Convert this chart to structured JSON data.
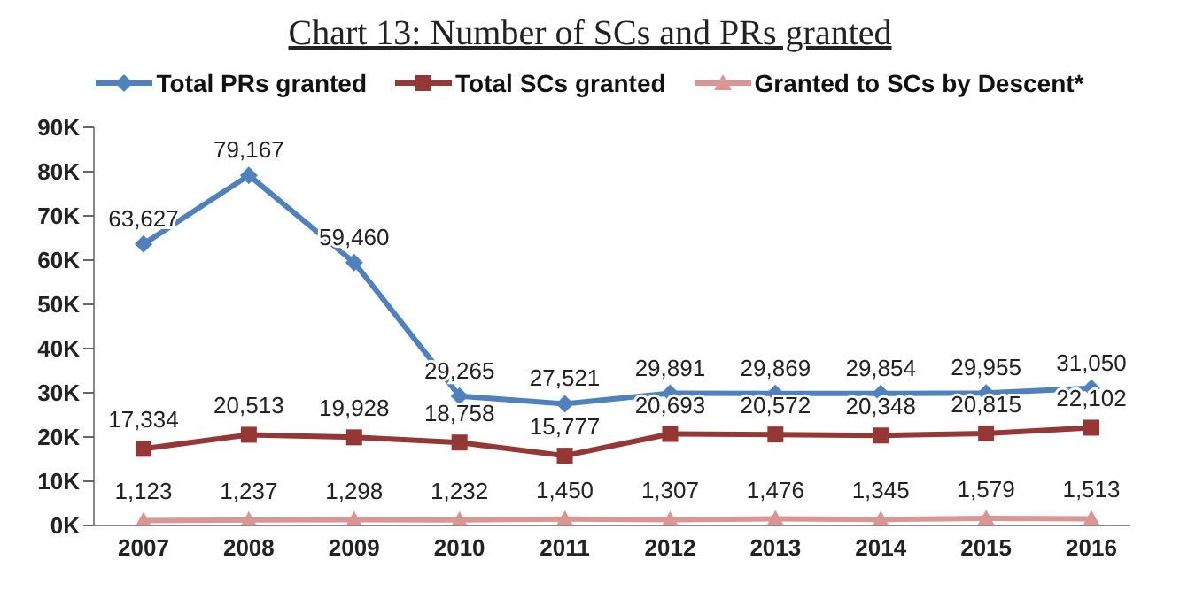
{
  "chart_data": {
    "type": "line",
    "title": "Chart 13: Number of SCs and PRs granted",
    "categories": [
      "2007",
      "2008",
      "2009",
      "2010",
      "2011",
      "2012",
      "2013",
      "2014",
      "2015",
      "2016"
    ],
    "series": [
      {
        "name": "Total PRs granted",
        "color": "#4f81bd",
        "marker": "diamond",
        "values": [
          63627,
          79167,
          59460,
          29265,
          27521,
          29891,
          29869,
          29854,
          29955,
          31050
        ],
        "value_labels": [
          "63,627",
          "79,167",
          "59,460",
          "29,265",
          "27,521",
          "29,891",
          "29,869",
          "29,854",
          "29,955",
          "31,050"
        ]
      },
      {
        "name": "Total SCs granted",
        "color": "#953735",
        "marker": "square",
        "values": [
          17334,
          20513,
          19928,
          18758,
          15777,
          20693,
          20572,
          20348,
          20815,
          22102
        ],
        "value_labels": [
          "17,334",
          "20,513",
          "19,928",
          "18,758",
          "15,777",
          "20,693",
          "20,572",
          "20,348",
          "20,815",
          "22,102"
        ]
      },
      {
        "name": "Granted to SCs by Descent*",
        "color": "#d99694",
        "marker": "triangle",
        "values": [
          1123,
          1237,
          1298,
          1232,
          1450,
          1307,
          1476,
          1345,
          1579,
          1513
        ],
        "value_labels": [
          "1,123",
          "1,237",
          "1,298",
          "1,232",
          "1,450",
          "1,307",
          "1,476",
          "1,345",
          "1,579",
          "1,513"
        ]
      }
    ],
    "ylim": [
      0,
      90000
    ],
    "yticks": [
      {
        "value": 0,
        "label": "0K"
      },
      {
        "value": 10000,
        "label": "10K"
      },
      {
        "value": 20000,
        "label": "20K"
      },
      {
        "value": 30000,
        "label": "30K"
      },
      {
        "value": 40000,
        "label": "40K"
      },
      {
        "value": 50000,
        "label": "50K"
      },
      {
        "value": 60000,
        "label": "60K"
      },
      {
        "value": 70000,
        "label": "70K"
      },
      {
        "value": 80000,
        "label": "80K"
      },
      {
        "value": 90000,
        "label": "90K"
      }
    ],
    "legend": "top",
    "line_style": "solid"
  }
}
